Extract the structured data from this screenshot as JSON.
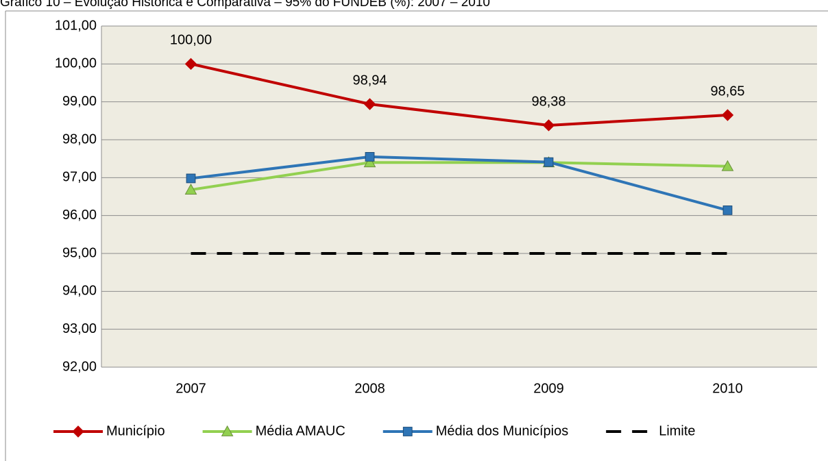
{
  "chart_data": {
    "type": "line",
    "title": "Gráfico 10 – Evolução Histórica e Comparativa – 95% do FUNDEB (%): 2007 – 2010",
    "categories": [
      "2007",
      "2008",
      "2009",
      "2010"
    ],
    "ylim": [
      92,
      101
    ],
    "yticks": [
      {
        "value": 92,
        "label": "92,00"
      },
      {
        "value": 93,
        "label": "93,00"
      },
      {
        "value": 94,
        "label": "94,00"
      },
      {
        "value": 95,
        "label": "95,00"
      },
      {
        "value": 96,
        "label": "96,00"
      },
      {
        "value": 97,
        "label": "97,00"
      },
      {
        "value": 98,
        "label": "98,00"
      },
      {
        "value": 99,
        "label": "99,00"
      },
      {
        "value": 100,
        "label": "100,00"
      },
      {
        "value": 101,
        "label": "101,00"
      }
    ],
    "grid": true,
    "legend": "bottom",
    "series": [
      {
        "name": "Município",
        "color": "#c00000",
        "marker": "diamond",
        "values": [
          100,
          98.94,
          98.38,
          98.65
        ],
        "value_labels": [
          "100,00",
          "98,94",
          "98,38",
          "98,65"
        ]
      },
      {
        "name": "Média AMAUC",
        "color": "#92d050",
        "marker": "triangle",
        "values": [
          96.68,
          97.4,
          97.4,
          97.3
        ]
      },
      {
        "name": "Média dos Municípios",
        "color": "#2e75b6",
        "marker": "square",
        "values": [
          96.98,
          97.55,
          97.41,
          96.14
        ]
      },
      {
        "name": "Limite",
        "color": "#000000",
        "marker": "none",
        "dashed": true,
        "values": [
          95,
          95,
          95,
          95
        ]
      }
    ]
  }
}
